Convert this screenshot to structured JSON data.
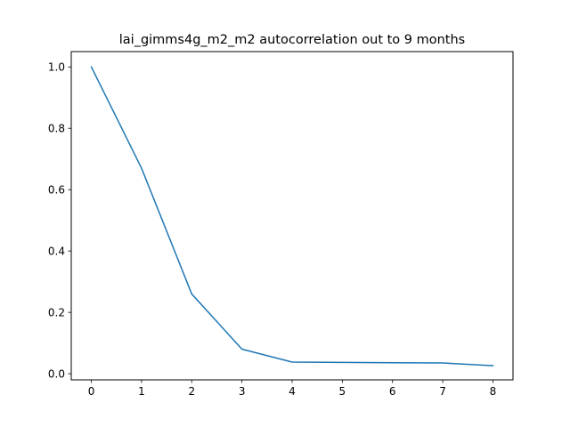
{
  "chart_data": {
    "type": "line",
    "title": "lai_gimms4g_m2_m2 autocorrelation out to 9 months",
    "xlabel": "",
    "ylabel": "",
    "x": [
      0,
      1,
      2,
      3,
      4,
      5,
      6,
      7,
      8
    ],
    "series": [
      {
        "values": [
          1.0,
          0.67,
          0.26,
          0.08,
          0.038,
          0.037,
          0.036,
          0.035,
          0.026
        ],
        "color": "#1f77b4"
      }
    ],
    "xlim": [
      -0.4,
      8.4
    ],
    "ylim": [
      -0.02,
      1.05
    ],
    "xticks": [
      "0",
      "1",
      "2",
      "3",
      "4",
      "5",
      "6",
      "7",
      "8"
    ],
    "yticks": [
      "0.0",
      "0.2",
      "0.4",
      "0.6",
      "0.8",
      "1.0"
    ],
    "grid": false,
    "legend": false
  }
}
